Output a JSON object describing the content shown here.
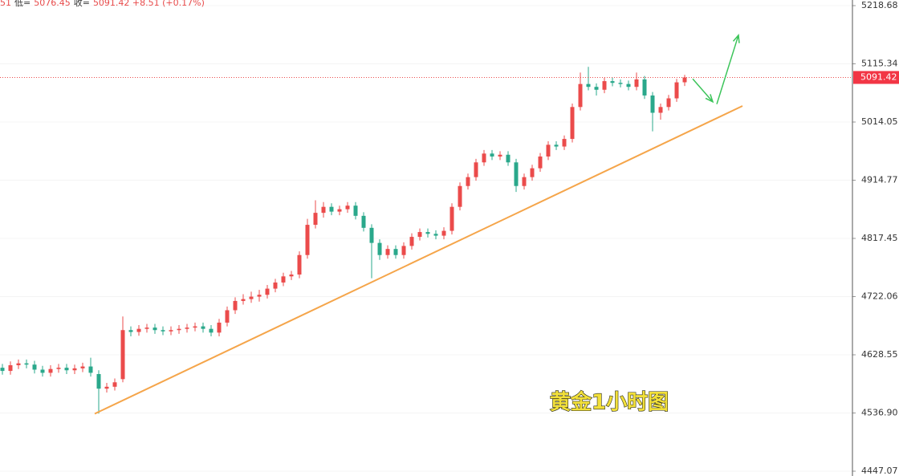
{
  "chart_data": {
    "type": "candlestick",
    "header_parts": [
      "51",
      "低=",
      "5076.45",
      "收=",
      "5091.42 +8.51 (+0.17%)"
    ],
    "log_scale": true,
    "grid": true,
    "up_color": "#eb4b4b",
    "down_color": "#2aa88b",
    "ylim": [
      4439.7,
      5228.8
    ],
    "yticks": [
      5218.68,
      5115.34,
      5014.05,
      4914.77,
      4817.45,
      4722.06,
      4628.55,
      {
        "value": 4536.9,
        "label": "4536.90"
      },
      4447.07
    ],
    "open": [
      4608,
      4603,
      4612,
      4615,
      4613,
      4605,
      4600,
      4606,
      4608,
      4604,
      4607,
      4610,
      4598,
      4575,
      4578,
      4590,
      4668,
      4665,
      4670,
      4672,
      4668,
      4666,
      4668,
      4670,
      4672,
      4674,
      4670,
      4664,
      4680,
      4700,
      4715,
      4718,
      4722,
      4725,
      4735,
      4745,
      4755,
      4758,
      4790,
      4840,
      4860,
      4870,
      4862,
      4866,
      4872,
      4855,
      4835,
      4810,
      4790,
      4800,
      4790,
      4805,
      4820,
      4828,
      4825,
      4822,
      4830,
      4870,
      4905,
      4920,
      4945,
      4960,
      4955,
      4958,
      4945,
      4905,
      4920,
      4935,
      4955,
      4975,
      4972,
      4985,
      5040,
      5080,
      5075,
      5070,
      5085,
      5082,
      5080,
      5075,
      5088,
      5060,
      5030,
      5040,
      5055,
      5083
    ],
    "high": [
      4614,
      4618,
      4621,
      4621,
      4619,
      4611,
      4612,
      4614,
      4614,
      4613,
      4616,
      4624,
      4604,
      4584,
      4591,
      4690,
      4674,
      4676,
      4678,
      4678,
      4674,
      4674,
      4676,
      4678,
      4680,
      4680,
      4676,
      4686,
      4706,
      4721,
      4726,
      4730,
      4733,
      4741,
      4751,
      4761,
      4764,
      4796,
      4850,
      4881,
      4878,
      4876,
      4872,
      4878,
      4878,
      4861,
      4841,
      4816,
      4806,
      4806,
      4811,
      4826,
      4834,
      4834,
      4831,
      4836,
      4876,
      4911,
      4926,
      4951,
      4966,
      4966,
      4964,
      4964,
      4951,
      4926,
      4941,
      4961,
      4981,
      4981,
      4991,
      5046,
      5100,
      5110,
      5081,
      5091,
      5091,
      5088,
      5086,
      5100,
      5094,
      5066,
      5046,
      5061,
      5089,
      5096
    ],
    "low": [
      4597,
      4597,
      4606,
      4607,
      4599,
      4594,
      4594,
      4600,
      4598,
      4598,
      4601,
      4594,
      4536,
      4569,
      4572,
      4585,
      4658,
      4659,
      4664,
      4662,
      4660,
      4660,
      4662,
      4664,
      4666,
      4664,
      4658,
      4658,
      4674,
      4694,
      4709,
      4712,
      4714,
      4719,
      4729,
      4739,
      4749,
      4752,
      4784,
      4834,
      4852,
      4856,
      4856,
      4860,
      4849,
      4829,
      4752,
      4782,
      4784,
      4784,
      4784,
      4799,
      4814,
      4819,
      4816,
      4816,
      4824,
      4864,
      4899,
      4914,
      4939,
      4949,
      4949,
      4939,
      4895,
      4899,
      4914,
      4929,
      4949,
      4966,
      4966,
      4979,
      5034,
      5069,
      5060,
      5064,
      5076,
      5074,
      5069,
      5069,
      5054,
      4998,
      5018,
      5034,
      5049,
      5076.45
    ],
    "close": [
      4603,
      4612,
      4615,
      4613,
      4605,
      4600,
      4606,
      4608,
      4604,
      4607,
      4610,
      4600,
      4575,
      4578,
      4585,
      4668,
      4665,
      4670,
      4672,
      4668,
      4666,
      4668,
      4670,
      4672,
      4674,
      4670,
      4664,
      4680,
      4700,
      4715,
      4718,
      4722,
      4725,
      4735,
      4745,
      4755,
      4758,
      4790,
      4840,
      4860,
      4870,
      4862,
      4866,
      4872,
      4855,
      4835,
      4810,
      4790,
      4800,
      4790,
      4805,
      4820,
      4828,
      4825,
      4822,
      4830,
      4870,
      4905,
      4920,
      4945,
      4960,
      4955,
      4958,
      4945,
      4905,
      4920,
      4935,
      4955,
      4975,
      4972,
      4985,
      5040,
      5080,
      5075,
      5070,
      5085,
      5082,
      5080,
      5075,
      5088,
      5060,
      5030,
      5040,
      5055,
      5082.91,
      5091.42
    ],
    "trendline": {
      "color": "#f5a54a",
      "points": [
        [
          11.5,
          4535.7
        ],
        [
          92.2,
          5041.8
        ]
      ]
    },
    "arrows": {
      "color": "#3cc45a",
      "items": [
        {
          "from": [
            86,
            5089
          ],
          "to": [
            88.5,
            5049
          ]
        },
        {
          "from": [
            89,
            5045
          ],
          "to": [
            91.7,
            5166
          ]
        }
      ]
    },
    "annotation": "黄金1小时图"
  }
}
